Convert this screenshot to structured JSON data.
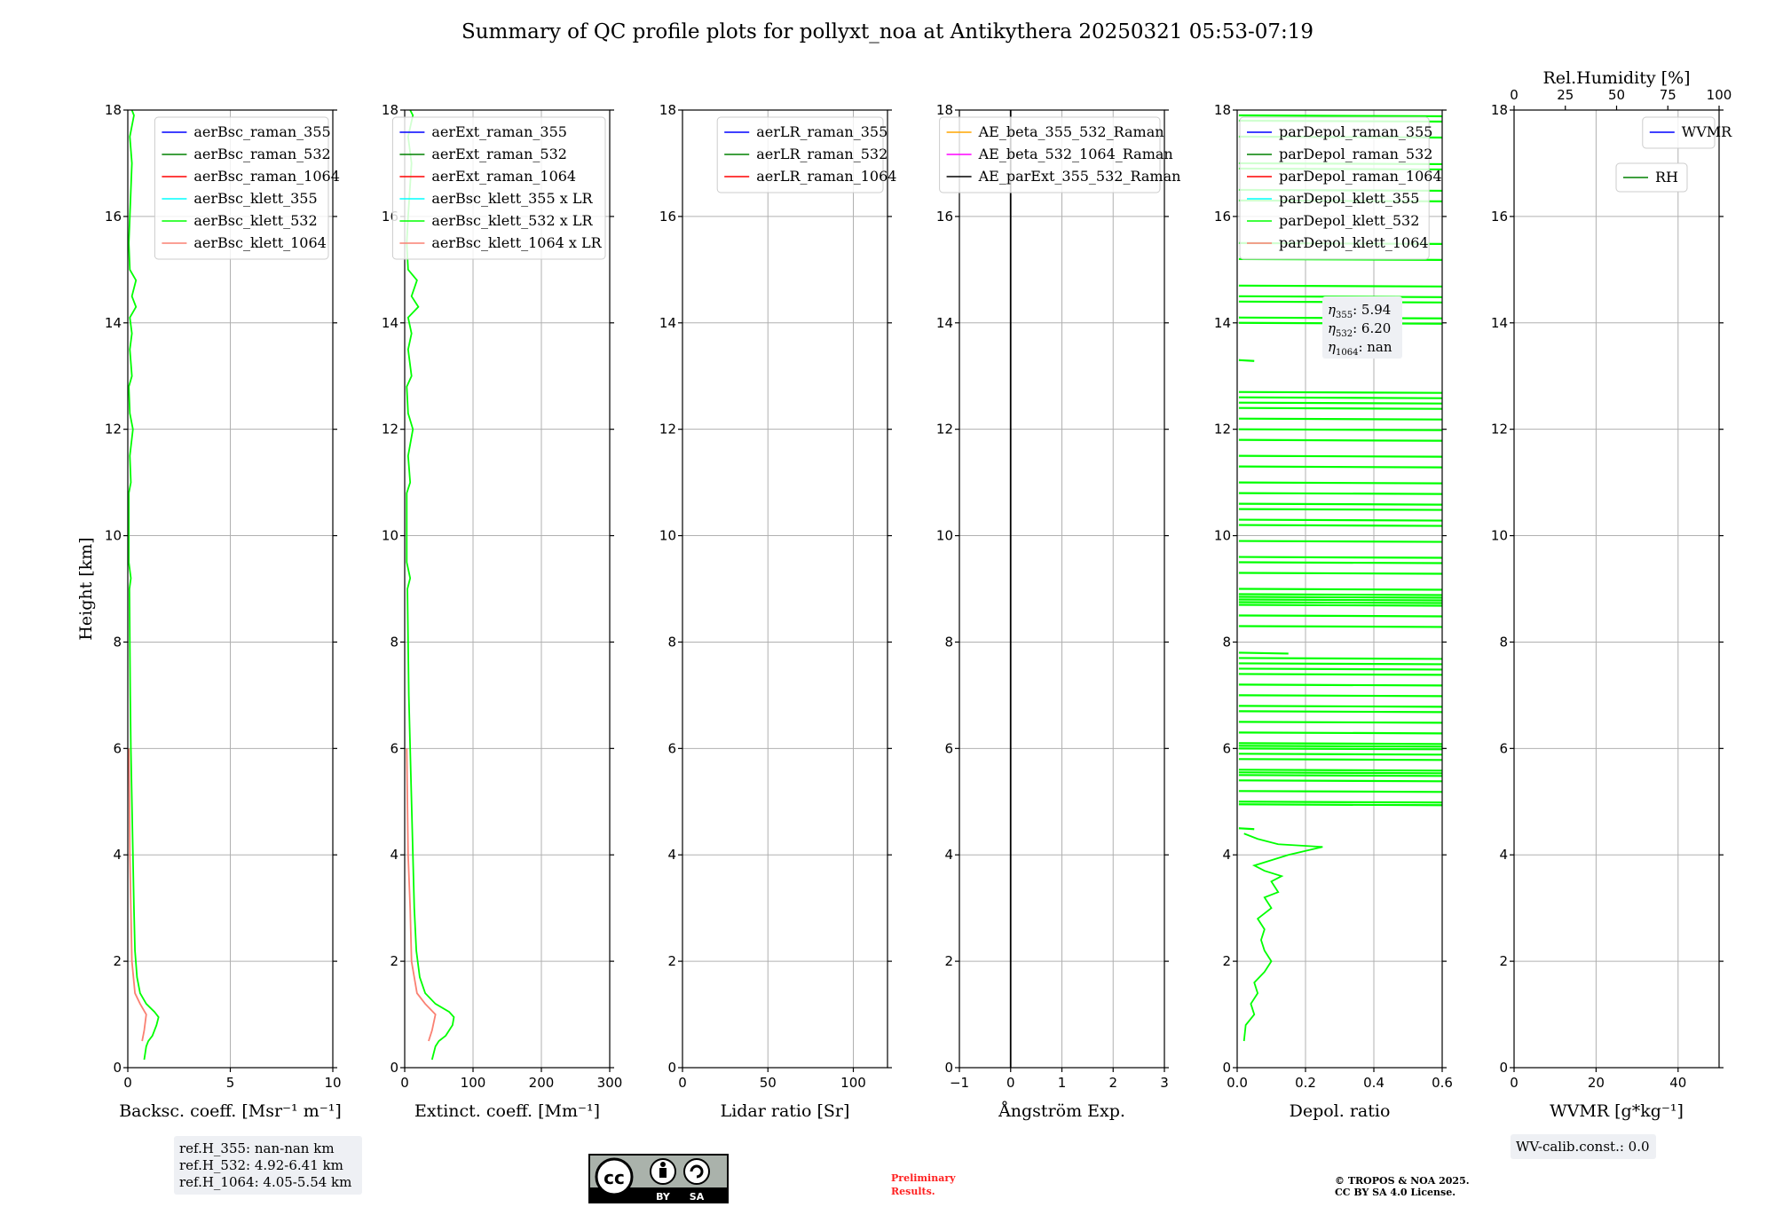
{
  "title": "Summary of QC profile plots for pollyxt_noa at Antikythera 20250321 05:53-07:19",
  "colors": {
    "raman_355": "#0000ff",
    "raman_532": "#008000",
    "raman_1064": "#ff0000",
    "klett_355": "#00ffff",
    "klett_532": "#00ff00",
    "klett_1064": "#fa8072",
    "ae_355_532": "#ffa500",
    "ae_532_1064": "#ff00ff",
    "ae_parext": "#000000",
    "wvmr": "#0000ff",
    "rh": "#008000"
  },
  "footer": {
    "refh": [
      "ref.H_355: nan-nan km",
      "ref.H_532: 4.92-6.41 km",
      "ref.H_1064: 4.05-5.54 km"
    ],
    "preliminary": [
      "Preliminary",
      "Results."
    ],
    "copyright": [
      "© TROPOS & NOA 2025.",
      "CC BY SA 4.0 License."
    ],
    "wv_calib": "WV-calib.const.: 0.0",
    "license_badge": {
      "cc": "cc",
      "by": "BY",
      "sa": "SA"
    }
  },
  "eta_box": {
    "l1": ": 5.94",
    "l2": ": 6.20",
    "l3": ": nan",
    "sub1": "355",
    "sub2": "532",
    "sub3": "1064"
  },
  "chart_data": [
    {
      "type": "line",
      "name": "backscatter",
      "xlabel": "Backsc. coeff. [Msr⁻¹ m⁻¹]",
      "ylabel": "Height [km]",
      "xlim": [
        0,
        10
      ],
      "ylim": [
        0,
        18
      ],
      "xticks": [
        0,
        5,
        10
      ],
      "xticklabels": [
        "0",
        "5",
        "10"
      ],
      "yticks": [
        0,
        2,
        4,
        6,
        8,
        10,
        12,
        14,
        16,
        18
      ],
      "grid": true,
      "legend_position": "top-right",
      "legend": [
        "aerBsc_raman_355",
        "aerBsc_raman_532",
        "aerBsc_raman_1064",
        "aerBsc_klett_355",
        "aerBsc_klett_532",
        "aerBsc_klett_1064"
      ],
      "series": [
        {
          "name": "aerBsc_klett_532",
          "color": "#00ff00",
          "points": [
            [
              0.8,
              0.15
            ],
            [
              0.9,
              0.4
            ],
            [
              1.0,
              0.5
            ],
            [
              1.2,
              0.6
            ],
            [
              1.4,
              0.8
            ],
            [
              1.5,
              0.95
            ],
            [
              1.3,
              1.05
            ],
            [
              0.9,
              1.2
            ],
            [
              0.6,
              1.4
            ],
            [
              0.45,
              1.7
            ],
            [
              0.35,
              2.2
            ],
            [
              0.3,
              3
            ],
            [
              0.25,
              4
            ],
            [
              0.2,
              5
            ],
            [
              0.15,
              6
            ],
            [
              0.12,
              7
            ],
            [
              0.1,
              8
            ],
            [
              0.08,
              9
            ],
            [
              0.15,
              9.2
            ],
            [
              0.05,
              9.5
            ],
            [
              0.05,
              10.8
            ],
            [
              0.15,
              11
            ],
            [
              0.1,
              11.5
            ],
            [
              0.25,
              12
            ],
            [
              0.1,
              12.3
            ],
            [
              0.05,
              12.8
            ],
            [
              0.2,
              13
            ],
            [
              0.1,
              13.5
            ],
            [
              0.2,
              13.8
            ],
            [
              0.1,
              14.1
            ],
            [
              0.4,
              14.3
            ],
            [
              0.2,
              14.5
            ],
            [
              0.4,
              14.8
            ],
            [
              0.1,
              15
            ],
            [
              0.05,
              15.5
            ],
            [
              0.1,
              16
            ],
            [
              0.2,
              17
            ],
            [
              0.1,
              17.5
            ],
            [
              0.3,
              17.9
            ],
            [
              0.2,
              18
            ]
          ]
        },
        {
          "name": "aerBsc_klett_1064",
          "color": "#fa8072",
          "points": [
            [
              0.7,
              0.5
            ],
            [
              0.8,
              0.7
            ],
            [
              0.9,
              1.0
            ],
            [
              0.6,
              1.2
            ],
            [
              0.35,
              1.4
            ],
            [
              0.2,
              2
            ],
            [
              0.15,
              3
            ],
            [
              0.1,
              4
            ],
            [
              0.08,
              5
            ],
            [
              0.05,
              6
            ]
          ]
        }
      ]
    },
    {
      "type": "line",
      "name": "extinction",
      "xlabel": "Extinct. coeff. [Mm⁻¹]",
      "xlim": [
        0,
        300
      ],
      "ylim": [
        0,
        18
      ],
      "xticks": [
        0,
        100,
        200,
        300
      ],
      "xticklabels": [
        "0",
        "100",
        "200",
        "300"
      ],
      "yticks": [
        0,
        2,
        4,
        6,
        8,
        10,
        12,
        14,
        16,
        18
      ],
      "grid": true,
      "legend_position": "top-right",
      "legend": [
        "aerExt_raman_355",
        "aerExt_raman_532",
        "aerExt_raman_1064",
        "aerBsc_klett_355 x LR",
        "aerBsc_klett_532 x LR",
        "aerBsc_klett_1064 x LR"
      ],
      "series": [
        {
          "name": "aerBsc_klett_532 x LR",
          "color": "#00ff00",
          "points": [
            [
              40,
              0.15
            ],
            [
              45,
              0.4
            ],
            [
              50,
              0.5
            ],
            [
              60,
              0.6
            ],
            [
              70,
              0.8
            ],
            [
              72,
              0.95
            ],
            [
              65,
              1.05
            ],
            [
              45,
              1.2
            ],
            [
              30,
              1.4
            ],
            [
              22,
              1.7
            ],
            [
              17,
              2.2
            ],
            [
              14,
              3
            ],
            [
              12,
              4
            ],
            [
              10,
              5
            ],
            [
              8,
              6
            ],
            [
              6,
              7
            ],
            [
              5,
              8
            ],
            [
              4,
              9
            ],
            [
              8,
              9.2
            ],
            [
              3,
              9.5
            ],
            [
              3,
              10.8
            ],
            [
              8,
              11
            ],
            [
              5,
              11.5
            ],
            [
              12,
              12
            ],
            [
              5,
              12.3
            ],
            [
              3,
              12.8
            ],
            [
              10,
              13
            ],
            [
              5,
              13.5
            ],
            [
              10,
              13.8
            ],
            [
              5,
              14.1
            ],
            [
              20,
              14.3
            ],
            [
              10,
              14.5
            ],
            [
              18,
              14.8
            ],
            [
              5,
              15
            ],
            [
              3,
              15.5
            ],
            [
              5,
              16
            ],
            [
              10,
              17
            ],
            [
              5,
              17.5
            ],
            [
              12,
              17.9
            ],
            [
              8,
              18
            ]
          ]
        },
        {
          "name": "aerBsc_klett_1064 x LR",
          "color": "#fa8072",
          "points": [
            [
              35,
              0.5
            ],
            [
              40,
              0.7
            ],
            [
              45,
              1.0
            ],
            [
              30,
              1.2
            ],
            [
              18,
              1.4
            ],
            [
              10,
              2
            ],
            [
              8,
              3
            ],
            [
              5,
              4
            ],
            [
              4,
              5
            ],
            [
              3,
              6
            ]
          ]
        }
      ]
    },
    {
      "type": "line",
      "name": "lidar_ratio",
      "xlabel": "Lidar ratio [Sr]",
      "xlim": [
        0,
        120
      ],
      "ylim": [
        0,
        18
      ],
      "xticks": [
        0,
        50,
        100
      ],
      "xticklabels": [
        "0",
        "50",
        "100"
      ],
      "yticks": [
        0,
        2,
        4,
        6,
        8,
        10,
        12,
        14,
        16,
        18
      ],
      "grid": true,
      "legend_position": "top-right",
      "legend": [
        "aerLR_raman_355",
        "aerLR_raman_532",
        "aerLR_raman_1064"
      ],
      "series": []
    },
    {
      "type": "line",
      "name": "angstrom",
      "xlabel": "Ångström Exp.",
      "xlim": [
        -1,
        3
      ],
      "ylim": [
        0,
        18
      ],
      "xticks": [
        -1,
        0,
        1,
        2,
        3
      ],
      "xticklabels": [
        "−1",
        "0",
        "1",
        "2",
        "3"
      ],
      "yticks": [
        0,
        2,
        4,
        6,
        8,
        10,
        12,
        14,
        16,
        18
      ],
      "grid": true,
      "legend_position": "top-right",
      "legend": [
        "AE_beta_355_532_Raman",
        "AE_beta_532_1064_Raman",
        "AE_parExt_355_532_Raman"
      ],
      "series": [
        {
          "name": "zero-line",
          "color": "#000000",
          "points": [
            [
              0,
              0
            ],
            [
              0,
              18
            ]
          ]
        }
      ]
    },
    {
      "type": "line",
      "name": "depolarization",
      "xlabel": "Depol. ratio",
      "xlim": [
        0,
        0.6
      ],
      "ylim": [
        0,
        18
      ],
      "xticks": [
        0,
        0.2,
        0.4,
        0.6
      ],
      "xticklabels": [
        "0.0",
        "0.2",
        "0.4",
        "0.6"
      ],
      "yticks": [
        0,
        2,
        4,
        6,
        8,
        10,
        12,
        14,
        16,
        18
      ],
      "grid": true,
      "legend_position": "top-left",
      "legend": [
        "parDepol_raman_355",
        "parDepol_raman_532",
        "parDepol_raman_1064",
        "parDepol_klett_355",
        "parDepol_klett_532",
        "parDepol_klett_1064"
      ],
      "series": [
        {
          "name": "parDepol_klett_532",
          "color": "#00ff00",
          "points": [
            [
              0.02,
              0.5
            ],
            [
              0.025,
              0.8
            ],
            [
              0.05,
              1.0
            ],
            [
              0.04,
              1.2
            ],
            [
              0.06,
              1.4
            ],
            [
              0.05,
              1.6
            ],
            [
              0.08,
              1.8
            ],
            [
              0.1,
              2.0
            ],
            [
              0.08,
              2.2
            ],
            [
              0.07,
              2.4
            ],
            [
              0.08,
              2.6
            ],
            [
              0.06,
              2.8
            ],
            [
              0.1,
              3.0
            ],
            [
              0.08,
              3.2
            ],
            [
              0.12,
              3.3
            ],
            [
              0.1,
              3.5
            ],
            [
              0.13,
              3.6
            ],
            [
              0.08,
              3.7
            ],
            [
              0.05,
              3.8
            ],
            [
              0.1,
              3.9
            ],
            [
              0.15,
              4.0
            ],
            [
              0.25,
              4.15
            ],
            [
              0.12,
              4.2
            ],
            [
              0.06,
              4.3
            ],
            [
              0.02,
              4.4
            ]
          ]
        },
        {
          "name": "parDepol_klett_532_noise",
          "color": "#00ff00",
          "spikes": [
            4.5,
            4.95,
            5.0,
            5.2,
            5.4,
            5.5,
            5.55,
            5.6,
            5.8,
            5.9,
            6.0,
            6.05,
            6.1,
            6.3,
            6.5,
            6.7,
            6.8,
            7.0,
            7.2,
            7.4,
            7.5,
            7.6,
            7.7,
            7.8,
            8.3,
            8.5,
            8.7,
            8.75,
            8.8,
            8.85,
            8.9,
            9.0,
            9.3,
            9.5,
            9.6,
            9.9,
            10.2,
            10.3,
            10.5,
            10.6,
            10.8,
            11.0,
            11.3,
            11.5,
            11.8,
            12.0,
            12.2,
            12.4,
            12.5,
            12.6,
            12.7,
            13.3,
            14.0,
            14.1,
            14.4,
            14.5,
            14.7,
            15.2,
            15.5,
            16.3,
            16.5,
            16.9,
            17.0,
            17.5,
            17.8,
            17.9
          ],
          "spike_x": [
            0.05,
            0.6,
            0.6,
            0.6,
            0.6,
            0.6,
            0.6,
            0.6,
            0.6,
            0.6,
            0.6,
            0.6,
            0.6,
            0.6,
            0.6,
            0.6,
            0.6,
            0.6,
            0.6,
            0.6,
            0.6,
            0.6,
            0.6,
            0.15,
            0.6,
            0.6,
            0.6,
            0.6,
            0.6,
            0.6,
            0.6,
            0.6,
            0.6,
            0.6,
            0.6,
            0.6,
            0.6,
            0.6,
            0.6,
            0.6,
            0.6,
            0.6,
            0.6,
            0.6,
            0.6,
            0.6,
            0.6,
            0.6,
            0.6,
            0.6,
            0.6,
            0.05,
            0.6,
            0.6,
            0.6,
            0.6,
            0.6,
            0.6,
            0.6,
            0.6,
            0.6,
            0.6,
            0.6,
            0.6,
            0.6,
            0.6
          ]
        }
      ]
    },
    {
      "type": "line",
      "name": "water_vapor",
      "xlabel": "WVMR [g*kg⁻¹]",
      "xlim": [
        0,
        50
      ],
      "ylim": [
        0,
        18
      ],
      "xticks": [
        0,
        20,
        40
      ],
      "xticklabels": [
        "0",
        "20",
        "40"
      ],
      "yticks": [
        0,
        2,
        4,
        6,
        8,
        10,
        12,
        14,
        16,
        18
      ],
      "grid": true,
      "legend_position": "top-right",
      "legend": [
        "WVMR"
      ],
      "top_axis": {
        "label": "Rel.Humidity [%]",
        "xlim": [
          0,
          100
        ],
        "xticks": [
          0,
          25,
          50,
          75,
          100
        ],
        "xticklabels": [
          "0",
          "25",
          "50",
          "75",
          "100"
        ]
      },
      "legend2": [
        "RH"
      ],
      "series": []
    }
  ]
}
